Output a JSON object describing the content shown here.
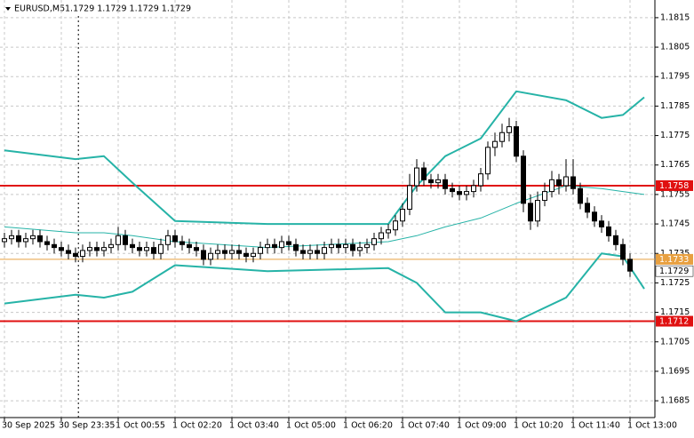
{
  "chart_data": {
    "type": "candlestick",
    "symbol": "EURUSD,M5",
    "quote": "1.1729 1.1729 1.1729 1.1729",
    "open": [
      1.1739,
      1.174,
      1.1741,
      1.1739,
      1.174,
      1.1741,
      1.1739,
      1.1738,
      1.1737,
      1.1736,
      1.1735,
      1.1734,
      1.1736,
      1.1737,
      1.1736,
      1.1737,
      1.1738,
      1.1741,
      1.1738,
      1.1737,
      1.1736,
      1.1737,
      1.1735,
      1.1738,
      1.1741,
      1.1739,
      1.1738,
      1.1737,
      1.1736,
      1.1733,
      1.1735,
      1.1736,
      1.1735,
      1.1736,
      1.1735,
      1.1734,
      1.1735,
      1.1737,
      1.1738,
      1.1737,
      1.1739,
      1.1738,
      1.1736,
      1.1735,
      1.1736,
      1.1735,
      1.1737,
      1.1738,
      1.1737,
      1.1738,
      1.1736,
      1.1737,
      1.1738,
      1.174,
      1.1742,
      1.1743,
      1.1746,
      1.175,
      1.1758,
      1.1764,
      1.176,
      1.1759,
      1.176,
      1.1757,
      1.1756,
      1.1755,
      1.1756,
      1.1758,
      1.1762,
      1.1771,
      1.1773,
      1.1776,
      1.1778,
      1.1768,
      1.1752,
      1.1746,
      1.1753,
      1.1756,
      1.176,
      1.1758,
      1.1761,
      1.1757,
      1.1752,
      1.1749,
      1.1746,
      1.1744,
      1.1741,
      1.1738,
      1.1733
    ],
    "high": [
      1.1742,
      1.1743,
      1.1743,
      1.1742,
      1.1743,
      1.1743,
      1.1741,
      1.174,
      1.1739,
      1.1738,
      1.1737,
      1.1738,
      1.1739,
      1.1739,
      1.1739,
      1.174,
      1.1744,
      1.1743,
      1.174,
      1.1739,
      1.1739,
      1.1739,
      1.174,
      1.1743,
      1.1743,
      1.1741,
      1.174,
      1.1739,
      1.1738,
      1.1737,
      1.1738,
      1.1738,
      1.1738,
      1.1738,
      1.1737,
      1.1737,
      1.1739,
      1.174,
      1.174,
      1.1741,
      1.1741,
      1.174,
      1.1738,
      1.1738,
      1.1738,
      1.1739,
      1.174,
      1.174,
      1.174,
      1.174,
      1.1739,
      1.174,
      1.1742,
      1.1744,
      1.1745,
      1.1748,
      1.1752,
      1.1762,
      1.1767,
      1.1766,
      1.1762,
      1.1762,
      1.1762,
      1.1759,
      1.1758,
      1.1758,
      1.176,
      1.1764,
      1.1773,
      1.1776,
      1.1779,
      1.1781,
      1.178,
      1.177,
      1.1755,
      1.1756,
      1.1759,
      1.1763,
      1.1762,
      1.1767,
      1.1767,
      1.1759,
      1.1754,
      1.1751,
      1.1748,
      1.1746,
      1.1743,
      1.174,
      1.1735
    ],
    "low": [
      1.1737,
      1.1738,
      1.1737,
      1.1737,
      1.1738,
      1.1737,
      1.1736,
      1.1735,
      1.1734,
      1.1733,
      1.1732,
      1.1732,
      1.1734,
      1.1734,
      1.1734,
      1.1735,
      1.1736,
      1.1736,
      1.1735,
      1.1734,
      1.1734,
      1.1733,
      1.1733,
      1.1736,
      1.1737,
      1.1736,
      1.1735,
      1.1734,
      1.1731,
      1.1731,
      1.1733,
      1.1733,
      1.1733,
      1.1733,
      1.1732,
      1.1732,
      1.1733,
      1.1735,
      1.1735,
      1.1735,
      1.1736,
      1.1734,
      1.1733,
      1.1733,
      1.1733,
      1.1733,
      1.1735,
      1.1735,
      1.1735,
      1.1734,
      1.1734,
      1.1735,
      1.1736,
      1.1738,
      1.174,
      1.1741,
      1.1744,
      1.1748,
      1.1756,
      1.1758,
      1.1757,
      1.1757,
      1.1755,
      1.1754,
      1.1753,
      1.1753,
      1.1754,
      1.1756,
      1.176,
      1.1768,
      1.1771,
      1.1773,
      1.1766,
      1.1749,
      1.1743,
      1.1744,
      1.1751,
      1.1754,
      1.1755,
      1.1756,
      1.1755,
      1.175,
      1.1747,
      1.1744,
      1.1742,
      1.1739,
      1.1736,
      1.1731,
      1.1727
    ],
    "close": [
      1.174,
      1.1741,
      1.1739,
      1.174,
      1.1741,
      1.1739,
      1.1738,
      1.1737,
      1.1736,
      1.1735,
      1.1734,
      1.1736,
      1.1737,
      1.1736,
      1.1737,
      1.1738,
      1.1741,
      1.1738,
      1.1737,
      1.1736,
      1.1737,
      1.1735,
      1.1738,
      1.1741,
      1.1739,
      1.1738,
      1.1737,
      1.1736,
      1.1733,
      1.1735,
      1.1736,
      1.1735,
      1.1736,
      1.1735,
      1.1734,
      1.1735,
      1.1737,
      1.1738,
      1.1737,
      1.1739,
      1.1738,
      1.1736,
      1.1735,
      1.1736,
      1.1735,
      1.1737,
      1.1738,
      1.1737,
      1.1738,
      1.1736,
      1.1737,
      1.1738,
      1.174,
      1.1742,
      1.1743,
      1.1746,
      1.175,
      1.1758,
      1.1764,
      1.176,
      1.1759,
      1.176,
      1.1757,
      1.1756,
      1.1755,
      1.1756,
      1.1758,
      1.1762,
      1.1771,
      1.1773,
      1.1776,
      1.1778,
      1.1768,
      1.1752,
      1.1746,
      1.1753,
      1.1756,
      1.176,
      1.1758,
      1.1761,
      1.1757,
      1.1752,
      1.1749,
      1.1746,
      1.1744,
      1.1741,
      1.1738,
      1.1733,
      1.1729
    ],
    "bands": {
      "color": "#26b3a7",
      "x": [
        0,
        10,
        14,
        18,
        24,
        37,
        54,
        58,
        62,
        67,
        72,
        79,
        84,
        87,
        90
      ],
      "upper": [
        1.177,
        1.1767,
        1.1768,
        1.1759,
        1.1746,
        1.1745,
        1.1745,
        1.1758,
        1.1768,
        1.1774,
        1.179,
        1.1787,
        1.1781,
        1.1782,
        1.1788
      ],
      "middle": [
        1.1744,
        1.1742,
        1.1742,
        1.1741,
        1.1739,
        1.1737,
        1.1739,
        1.1741,
        1.1744,
        1.1747,
        1.1752,
        1.1758,
        1.1757,
        1.1756,
        1.1755
      ],
      "lower": [
        1.1718,
        1.1721,
        1.172,
        1.1722,
        1.1731,
        1.1729,
        1.173,
        1.1725,
        1.1715,
        1.1715,
        1.1712,
        1.172,
        1.1735,
        1.1734,
        1.1723
      ]
    },
    "hlines": [
      {
        "value": 1.1758,
        "color": "#e01010"
      },
      {
        "value": 1.1712,
        "color": "#e01010"
      },
      {
        "value": 1.1733,
        "color": "#e8a040"
      }
    ],
    "bid": 1.1729,
    "separator_x": 10.4,
    "xlim": [
      -0.625,
      91.5
    ],
    "ylim": [
      1.16793,
      1.1821
    ],
    "yticks": [
      1.1815,
      1.1805,
      1.1795,
      1.1785,
      1.1775,
      1.1765,
      1.1755,
      1.1745,
      1.1735,
      1.1725,
      1.1715,
      1.1705,
      1.1695,
      1.1685
    ],
    "xticks": [
      {
        "value": 0,
        "label": "30 Sep 2025"
      },
      {
        "value": 8,
        "label": "30 Sep 23:35"
      },
      {
        "value": 16,
        "label": "1 Oct 00:55"
      },
      {
        "value": 24,
        "label": "1 Oct 02:20"
      },
      {
        "value": 32,
        "label": "1 Oct 03:40"
      },
      {
        "value": 40,
        "label": "1 Oct 05:00"
      },
      {
        "value": 48,
        "label": "1 Oct 06:20"
      },
      {
        "value": 56,
        "label": "1 Oct 07:40"
      },
      {
        "value": 64,
        "label": "1 Oct 09:00"
      },
      {
        "value": 72,
        "label": "1 Oct 10:20"
      },
      {
        "value": 80,
        "label": "1 Oct 11:40"
      },
      {
        "value": 88,
        "label": "1 Oct 13:00"
      }
    ],
    "grid": true
  }
}
